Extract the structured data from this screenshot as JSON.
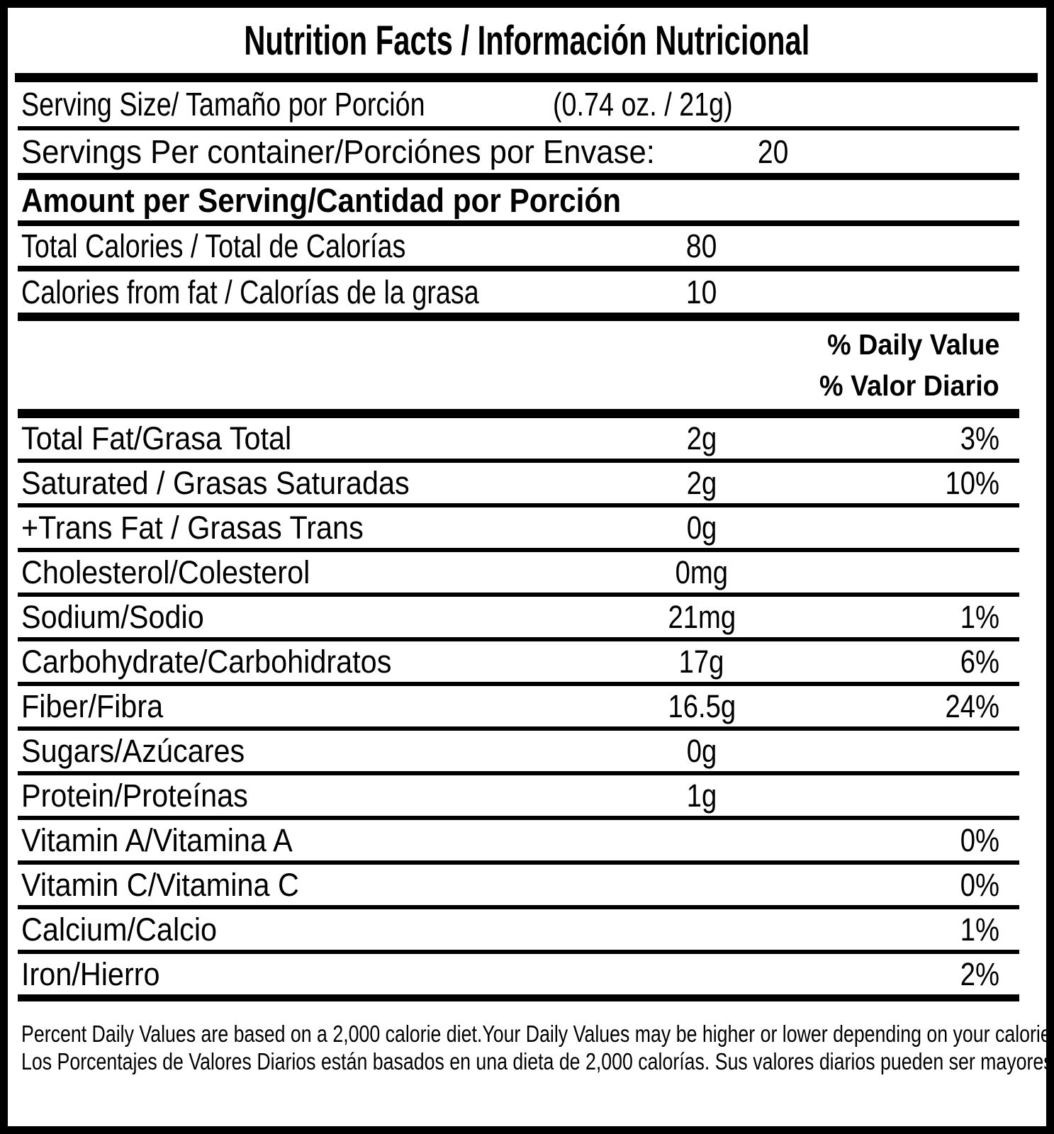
{
  "label": {
    "title": "Nutrition Facts / Información Nutricional",
    "serving_size": {
      "label": "Serving Size/ Tamaño por Porción",
      "value": "(0.74 oz. / 21g)"
    },
    "servings_per_container": {
      "label": "Servings Per container/Porciónes por Envase:",
      "value": "20"
    },
    "amount_heading": "Amount per Serving/Cantidad por Porción",
    "calories": [
      {
        "label": "Total Calories / Total de Calorías",
        "amount": "80"
      },
      {
        "label": "Calories from fat / Calorías de la grasa",
        "amount": "10"
      }
    ],
    "daily_value_heading_en": "% Daily Value",
    "daily_value_heading_es": "% Valor Diario",
    "nutrients": [
      {
        "label": "Total Fat/Grasa Total",
        "amount": "2g",
        "dv": "3%"
      },
      {
        "label": "Saturated / Grasas Saturadas",
        "amount": "2g",
        "dv": "10%"
      },
      {
        "label": "+Trans Fat / Grasas Trans",
        "amount": "0g",
        "dv": ""
      },
      {
        "label": "Cholesterol/Colesterol",
        "amount": "0mg",
        "dv": ""
      },
      {
        "label": "Sodium/Sodio",
        "amount": "21mg",
        "dv": "1%"
      },
      {
        "label": "Carbohydrate/Carbohidratos",
        "amount": "17g",
        "dv": "6%"
      },
      {
        "label": "Fiber/Fibra",
        "amount": "16.5g",
        "dv": "24%"
      },
      {
        "label": "Sugars/Azúcares",
        "amount": "0g",
        "dv": ""
      },
      {
        "label": "Protein/Proteínas",
        "amount": "1g",
        "dv": ""
      },
      {
        "label": "Vitamin A/Vitamina A",
        "amount": "",
        "dv": "0%"
      },
      {
        "label": "Vitamin C/Vitamina C",
        "amount": "",
        "dv": "0%"
      },
      {
        "label": "Calcium/Calcio",
        "amount": "",
        "dv": "1%"
      },
      {
        "label": "Iron/Hierro",
        "amount": "",
        "dv": "2%"
      }
    ],
    "footnotes": [
      "Percent Daily Values are based on a 2,000 calorie diet.Your Daily Values may be higher or lower depending on your\ncalorie needs.",
      "Los Porcentajes de Valores Diarios están basados en una dieta de 2,000 calorías. Sus valores diarios pueden ser\nmayores o menores dependiendo de sus necesidades calóricas"
    ]
  },
  "colors": {
    "ink": "#000000",
    "paper": "#ffffff"
  }
}
